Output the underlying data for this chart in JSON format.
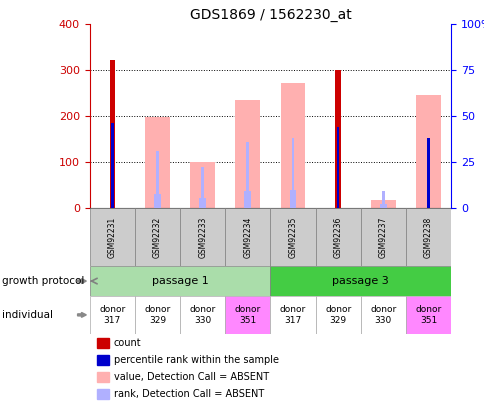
{
  "title": "GDS1869 / 1562230_at",
  "samples": [
    "GSM92231",
    "GSM92232",
    "GSM92233",
    "GSM92234",
    "GSM92235",
    "GSM92236",
    "GSM92237",
    "GSM92238"
  ],
  "count_values": [
    323,
    0,
    0,
    0,
    0,
    300,
    0,
    0
  ],
  "count_color": "#cc0000",
  "value_absent": [
    0,
    198,
    100,
    235,
    272,
    0,
    18,
    245
  ],
  "value_absent_color": "#ffb0b0",
  "percentile_rank": [
    46,
    0,
    0,
    0,
    0,
    44,
    0,
    38
  ],
  "percentile_rank_color": "#0000cc",
  "rank_absent": [
    0,
    31,
    22,
    36,
    38,
    0,
    9,
    0
  ],
  "rank_absent_color": "#b0b0ff",
  "ylim_left": [
    0,
    400
  ],
  "ylim_right": [
    0,
    100
  ],
  "yticks_left": [
    0,
    100,
    200,
    300,
    400
  ],
  "yticks_right": [
    0,
    25,
    50,
    75,
    100
  ],
  "yticklabels_right": [
    "0",
    "25",
    "50",
    "75",
    "100%"
  ],
  "passage1_color": "#aaddaa",
  "passage3_color": "#44cc44",
  "donors": [
    "donor\n317",
    "donor\n329",
    "donor\n330",
    "donor\n351",
    "donor\n317",
    "donor\n329",
    "donor\n330",
    "donor\n351"
  ],
  "donor_colors": [
    "#ffffff",
    "#ffffff",
    "#ffffff",
    "#ff88ff",
    "#ffffff",
    "#ffffff",
    "#ffffff",
    "#ff88ff"
  ],
  "growth_protocol_label": "growth protocol",
  "individual_label": "individual",
  "legend_items": [
    {
      "label": "count",
      "color": "#cc0000"
    },
    {
      "label": "percentile rank within the sample",
      "color": "#0000cc"
    },
    {
      "label": "value, Detection Call = ABSENT",
      "color": "#ffb0b0"
    },
    {
      "label": "rank, Detection Call = ABSENT",
      "color": "#b0b0ff"
    }
  ]
}
